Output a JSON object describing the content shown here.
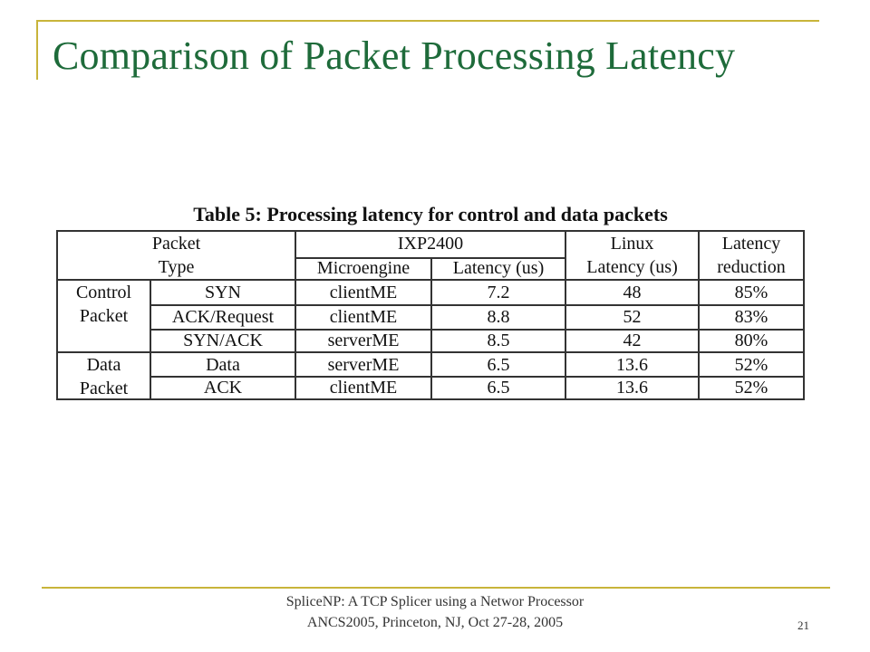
{
  "slide": {
    "title": "Comparison of Packet Processing Latency",
    "page_number": "21"
  },
  "footer": {
    "line1": "SpliceNP: A TCP Splicer using a Networ Processor",
    "line2": "ANCS2005, Princeton, NJ, Oct 27-28, 2005"
  },
  "table": {
    "caption": "Table 5: Processing latency for control and data packets",
    "header": {
      "packet": "Packet",
      "type": "Type",
      "ixp": "IXP2400",
      "microengine": "Microengine",
      "latency_us": "Latency (us)",
      "linux": "Linux",
      "linux_latency": "Latency (us)",
      "latency": "Latency",
      "reduction": "reduction"
    },
    "groups": {
      "control_line1": "Control",
      "control_line2": "Packet",
      "data_line1": "Data",
      "data_line2": "Packet"
    },
    "rows": [
      {
        "type": "SYN",
        "microengine": "clientME",
        "ixp_latency": "7.2",
        "linux_latency": "48",
        "reduction": "85%"
      },
      {
        "type": "ACK/Request",
        "microengine": "clientME",
        "ixp_latency": "8.8",
        "linux_latency": "52",
        "reduction": "83%"
      },
      {
        "type": "SYN/ACK",
        "microengine": "serverME",
        "ixp_latency": "8.5",
        "linux_latency": "42",
        "reduction": "80%"
      },
      {
        "type": "Data",
        "microengine": "serverME",
        "ixp_latency": "6.5",
        "linux_latency": "13.6",
        "reduction": "52%"
      },
      {
        "type": "ACK",
        "microengine": "clientME",
        "ixp_latency": "6.5",
        "linux_latency": "13.6",
        "reduction": "52%"
      }
    ]
  }
}
